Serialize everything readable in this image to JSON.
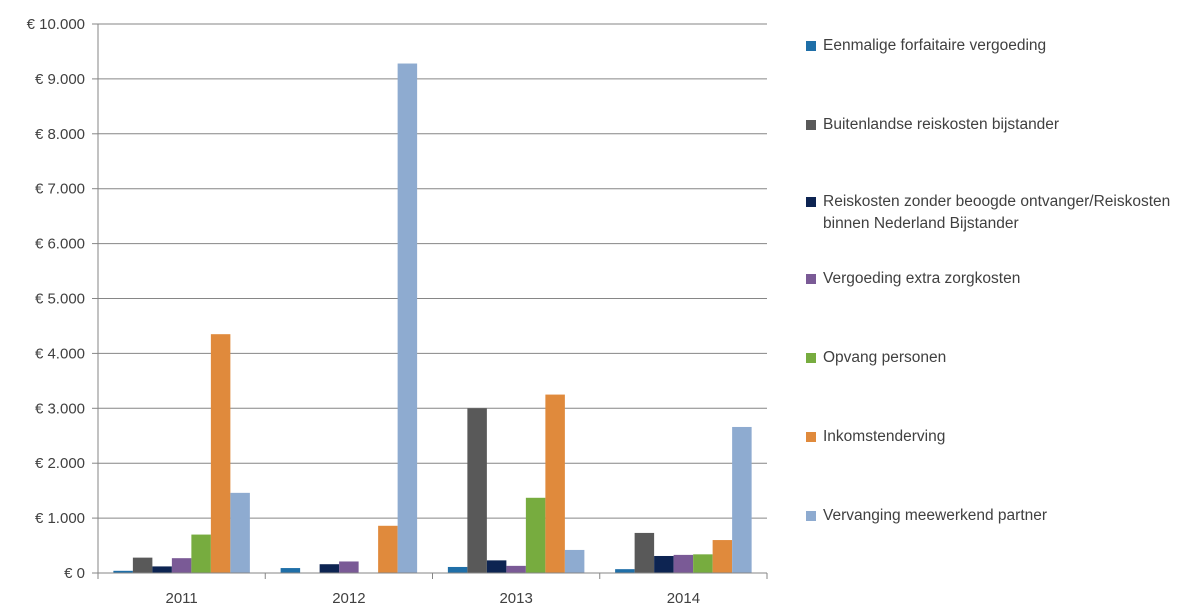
{
  "chart_data": {
    "type": "bar",
    "categories": [
      "2011",
      "2012",
      "2013",
      "2014"
    ],
    "ylim": [
      0,
      10000
    ],
    "y_ticks": [
      0,
      1000,
      2000,
      3000,
      4000,
      5000,
      6000,
      7000,
      8000,
      9000,
      10000
    ],
    "y_tick_labels": [
      "€ 0",
      "€ 1.000",
      "€ 2.000",
      "€ 3.000",
      "€ 4.000",
      "€ 5.000",
      "€ 6.000",
      "€ 7.000",
      "€ 8.000",
      "€ 9.000",
      "€ 10.000"
    ],
    "grid": true,
    "legend_position": "right",
    "series": [
      {
        "name": "Eenmalige forfaitaire vergoeding",
        "color": "#1f6fa8",
        "values": [
          40,
          90,
          110,
          70
        ]
      },
      {
        "name": "Buitenlandse reiskosten bijstander",
        "color": "#595959",
        "values": [
          280,
          0,
          3000,
          730
        ]
      },
      {
        "name": "Reiskosten zonder beoogde ontvanger/Reiskosten binnen Nederland Bijstander",
        "color": "#0d2452",
        "values": [
          120,
          160,
          230,
          310
        ]
      },
      {
        "name": "Vergoeding extra zorgkosten",
        "color": "#7a5a96",
        "values": [
          270,
          210,
          130,
          330
        ]
      },
      {
        "name": "Opvang personen",
        "color": "#77ac3f",
        "values": [
          700,
          0,
          1370,
          340
        ]
      },
      {
        "name": "Inkomstenderving",
        "color": "#e08a3c",
        "values": [
          4350,
          860,
          3250,
          600
        ]
      },
      {
        "name": "Vervanging meewerkend partner",
        "color": "#8eabd0",
        "values": [
          1460,
          9280,
          420,
          2660
        ]
      }
    ]
  }
}
